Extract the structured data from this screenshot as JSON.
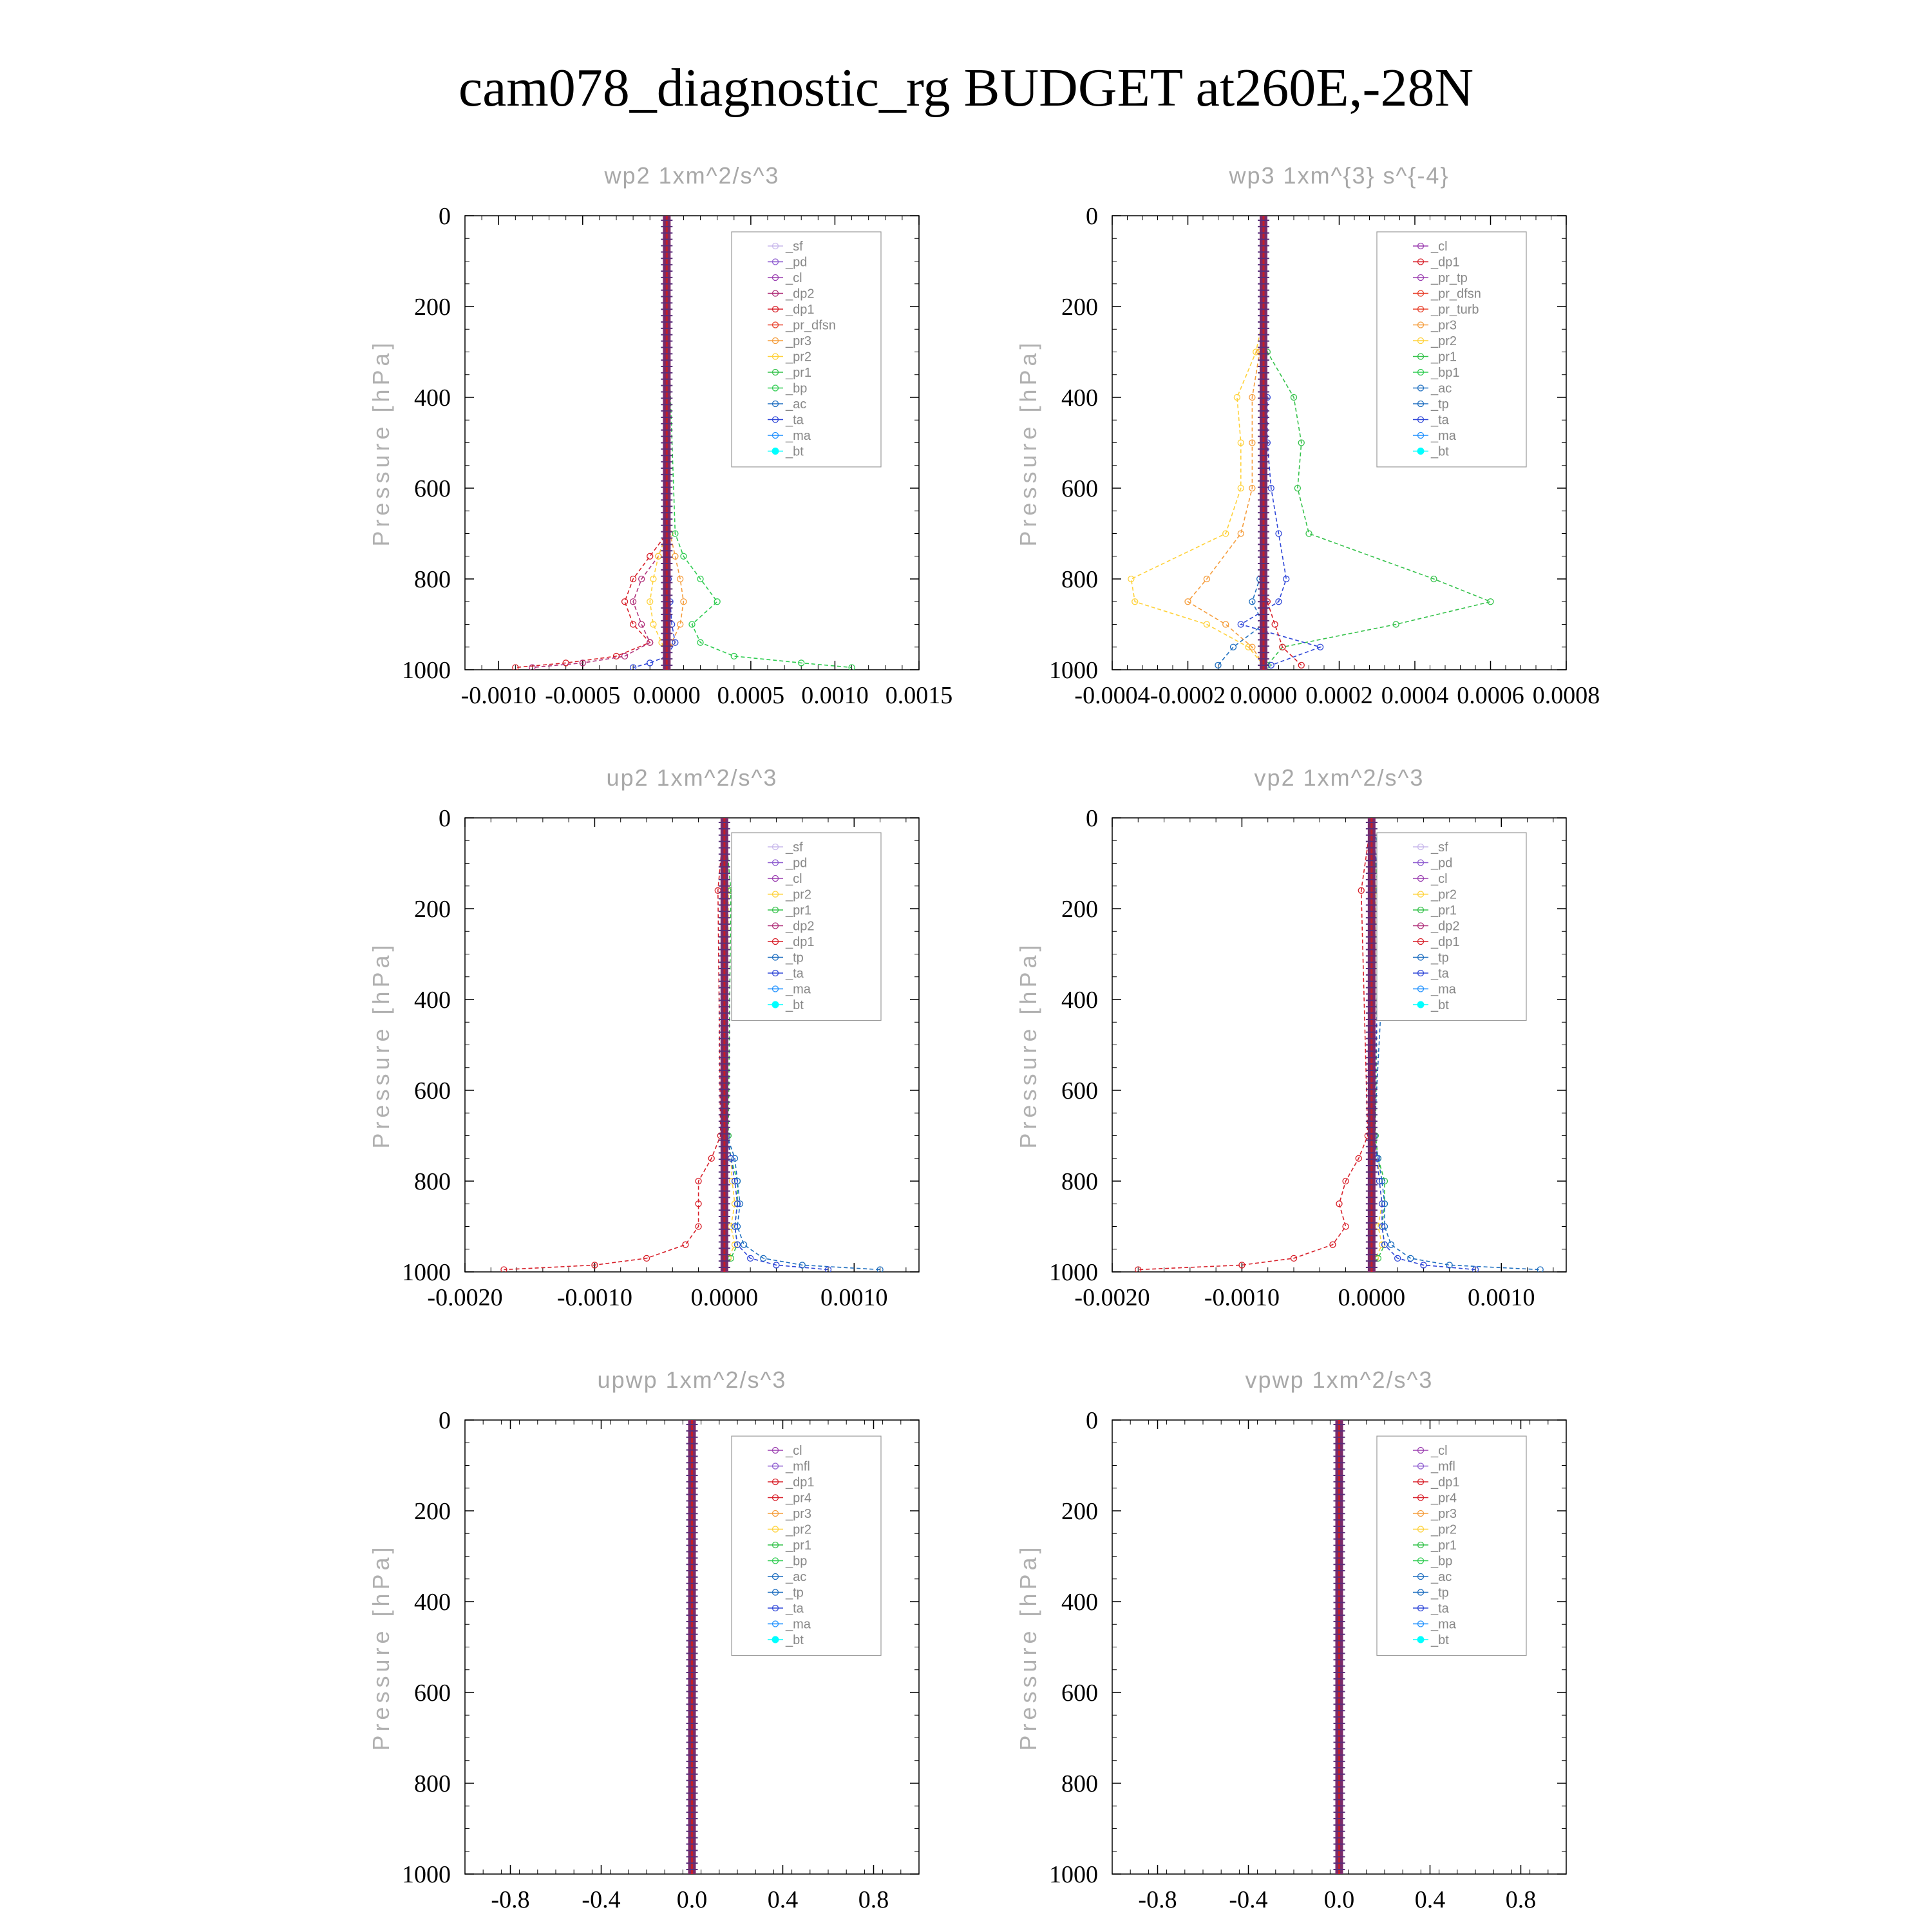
{
  "page_title": "cam078_diagnostic_rg  BUDGET at260E,-28N",
  "colors": {
    "sf": "#c9b8ec",
    "pd": "#8e5cd0",
    "cl": "#9b3fb0",
    "dp2": "#b0307a",
    "dp1": "#d8202a",
    "pr_dfsn": "#e8402a",
    "pr3": "#f59d3c",
    "pr2": "#ffd23a",
    "pr1": "#34c24a",
    "bp": "#2ecc50",
    "ac": "#1f6fc0",
    "ta": "#3048d8",
    "ma": "#1e90ff",
    "bt": "#00ffff"
  },
  "chart_data": [
    {
      "type": "line",
      "title": "wp2   1xm^2/s^3",
      "ylabel": "Pressure [hPa]",
      "ylim": [
        1000,
        0
      ],
      "yticks": [
        "0",
        "200",
        "400",
        "600",
        "800",
        "1000"
      ],
      "xlim": [
        -0.0012,
        0.0015
      ],
      "xticks": [
        -0.001,
        -0.0005,
        0.0,
        0.0005,
        0.001,
        0.0015
      ],
      "xtick_labels": [
        "-0.0010",
        "-0.0005",
        "0.0000",
        "0.0005",
        "0.0010",
        "0.0015"
      ],
      "legend": [
        "_sf",
        "_pd",
        "_cl",
        "_dp2",
        "_dp1",
        "_pr_dfsn",
        "_pr3",
        "_pr2",
        "_pr1",
        "_bp",
        "_ac",
        "_ta",
        "_ma",
        "_bt"
      ],
      "legend_position": "top-right",
      "y": [
        160,
        700,
        750,
        800,
        850,
        900,
        940,
        970,
        985,
        995
      ],
      "series": [
        {
          "name": "_dp1",
          "values": [
            0,
            0,
            -0.0001,
            -0.0002,
            -0.00025,
            -0.0002,
            -0.0001,
            -0.0003,
            -0.0006,
            -0.0009
          ]
        },
        {
          "name": "_dp2",
          "values": [
            0,
            0,
            -5e-05,
            -0.00015,
            -0.0002,
            -0.00015,
            -0.0001,
            -0.00025,
            -0.0005,
            -0.0008
          ]
        },
        {
          "name": "_pr2",
          "values": [
            0,
            0,
            -5e-05,
            -8e-05,
            -0.0001,
            -8e-05,
            -3e-05,
            0.0,
            0.0,
            0.0
          ]
        },
        {
          "name": "_pr3",
          "values": [
            0,
            2e-05,
            5e-05,
            8e-05,
            0.0001,
            8e-05,
            3e-05,
            0.0,
            0.0,
            0.0
          ]
        },
        {
          "name": "_bp",
          "values": [
            0,
            5e-05,
            0.0001,
            0.0002,
            0.0003,
            0.00015,
            0.0002,
            0.0004,
            0.0008,
            0.0011
          ]
        },
        {
          "name": "_ta",
          "values": [
            0,
            0,
            0,
            1e-05,
            2e-05,
            3e-05,
            5e-05,
            0.0,
            -0.0001,
            -0.0002
          ]
        }
      ]
    },
    {
      "type": "line",
      "title": "wp3   1xm^{3} s^{-4}",
      "ylabel": "Pressure [hPa]",
      "ylim": [
        1000,
        0
      ],
      "yticks": [
        "0",
        "200",
        "400",
        "600",
        "800",
        "1000"
      ],
      "xlim": [
        -0.0004,
        0.0008
      ],
      "xticks": [
        -0.0004,
        -0.0002,
        0.0,
        0.0002,
        0.0004,
        0.0006,
        0.0008
      ],
      "xtick_labels": [
        "-0.0004",
        "-0.0002",
        "0.0000",
        "0.0002",
        "0.0004",
        "0.0006",
        "0.0008"
      ],
      "legend": [
        "_cl",
        "_dp1",
        "_pr_tp",
        "_pr_dfsn",
        "_pr_turb",
        "_pr3",
        "_pr2",
        "_pr1",
        "_bp1",
        "_ac",
        "_tp",
        "_ta",
        "_ma",
        "_bt"
      ],
      "legend_position": "top-right",
      "y": [
        220,
        300,
        400,
        500,
        600,
        700,
        800,
        850,
        900,
        950,
        990
      ],
      "series": [
        {
          "name": "_pr1",
          "values": [
            0,
            1e-05,
            8e-05,
            0.0001,
            9e-05,
            0.00012,
            0.00045,
            0.0006,
            0.00035,
            5e-05,
            1e-05
          ]
        },
        {
          "name": "_pr2",
          "values": [
            0,
            -2e-05,
            -7e-05,
            -6e-05,
            -6e-05,
            -0.0001,
            -0.00035,
            -0.00034,
            -0.00015,
            -4e-05,
            0.0
          ]
        },
        {
          "name": "_pr3",
          "values": [
            0,
            -1e-05,
            -3e-05,
            -3e-05,
            -3e-05,
            -6e-05,
            -0.00015,
            -0.0002,
            -0.0001,
            -3e-05,
            0.0
          ]
        },
        {
          "name": "_ta",
          "values": [
            0,
            0,
            1e-05,
            1e-05,
            2e-05,
            4e-05,
            6e-05,
            4e-05,
            -6e-05,
            0.00015,
            2e-05
          ]
        },
        {
          "name": "_ac",
          "values": [
            0,
            0,
            0,
            0,
            0,
            0,
            -1e-05,
            -3e-05,
            0.0,
            -8e-05,
            -0.00012
          ]
        },
        {
          "name": "_dp1",
          "values": [
            0,
            0,
            0,
            0,
            0,
            0,
            0,
            1e-05,
            3e-05,
            5e-05,
            0.0001
          ]
        }
      ]
    },
    {
      "type": "line",
      "title": "up2   1xm^2/s^3",
      "ylabel": "Pressure [hPa]",
      "ylim": [
        1000,
        0
      ],
      "yticks": [
        "0",
        "200",
        "400",
        "600",
        "800",
        "1000"
      ],
      "xlim": [
        -0.002,
        0.0015
      ],
      "xticks": [
        -0.002,
        -0.001,
        0.0,
        0.001
      ],
      "xtick_labels": [
        "-0.0020",
        "-0.0010",
        "0.0000",
        "0.0010"
      ],
      "legend": [
        "_sf",
        "_pd",
        "_cl",
        "_pr2",
        "_pr1",
        "_dp2",
        "_dp1",
        "_tp",
        "_ta",
        "_ma",
        "_bt"
      ],
      "legend_position": "top-right",
      "y": [
        160,
        700,
        750,
        800,
        850,
        900,
        940,
        970,
        985,
        995
      ],
      "series": [
        {
          "name": "_dp1",
          "values": [
            -5e-05,
            -3e-05,
            -0.0001,
            -0.0002,
            -0.0002,
            -0.0002,
            -0.0003,
            -0.0006,
            -0.001,
            -0.0017
          ]
        },
        {
          "name": "_pr2",
          "values": [
            3e-05,
            2e-05,
            5e-05,
            6e-05,
            8e-05,
            5e-05,
            8e-05,
            3e-05,
            0.0,
            0.0
          ]
        },
        {
          "name": "_pr1",
          "values": [
            5e-05,
            3e-05,
            5e-05,
            0.0001,
            0.0001,
            8e-05,
            0.0001,
            5e-05,
            0.0,
            0.0
          ]
        },
        {
          "name": "_tp",
          "values": [
            0,
            2e-05,
            8e-05,
            0.0001,
            0.00012,
            0.0001,
            0.00015,
            0.0003,
            0.0006,
            0.0012
          ]
        },
        {
          "name": "_ta",
          "values": [
            0,
            2e-05,
            5e-05,
            8e-05,
            0.0001,
            8e-05,
            0.0001,
            0.0002,
            0.0004,
            0.0008
          ]
        }
      ]
    },
    {
      "type": "line",
      "title": "vp2   1xm^2/s^3",
      "ylabel": "Pressure [hPa]",
      "ylim": [
        1000,
        0
      ],
      "yticks": [
        "0",
        "200",
        "400",
        "600",
        "800",
        "1000"
      ],
      "xlim": [
        -0.002,
        0.0015
      ],
      "xticks": [
        -0.002,
        -0.001,
        0.0,
        0.001
      ],
      "xtick_labels": [
        "-0.0020",
        "-0.0010",
        "0.0000",
        "0.0010"
      ],
      "legend": [
        "_sf",
        "_pd",
        "_cl",
        "_pr2",
        "_pr1",
        "_dp2",
        "_dp1",
        "_tp",
        "_ta",
        "_ma",
        "_bt"
      ],
      "legend_position": "top-right",
      "y": [
        160,
        700,
        750,
        800,
        850,
        900,
        940,
        970,
        985,
        995
      ],
      "series": [
        {
          "name": "_dp1",
          "values": [
            -8e-05,
            -3e-05,
            -0.0001,
            -0.0002,
            -0.00025,
            -0.0002,
            -0.0003,
            -0.0006,
            -0.001,
            -0.0018
          ]
        },
        {
          "name": "_pr2",
          "values": [
            3e-05,
            2e-05,
            5e-05,
            6e-05,
            8e-05,
            5e-05,
            8e-05,
            3e-05,
            0.0,
            0.0
          ]
        },
        {
          "name": "_pr1",
          "values": [
            5e-05,
            3e-05,
            5e-05,
            0.0001,
            0.0001,
            8e-05,
            0.0001,
            5e-05,
            0.0,
            0.0
          ]
        },
        {
          "name": "_tp",
          "values": [
            0.00012,
            2e-05,
            5e-05,
            8e-05,
            0.0001,
            0.0001,
            0.00015,
            0.0003,
            0.0006,
            0.0013
          ]
        },
        {
          "name": "_ta",
          "values": [
            6e-05,
            2e-05,
            4e-05,
            6e-05,
            8e-05,
            8e-05,
            0.0001,
            0.0002,
            0.0004,
            0.0008
          ]
        }
      ]
    },
    {
      "type": "line",
      "title": "upwp   1xm^2/s^3",
      "ylabel": "Pressure [hPa]",
      "ylim": [
        1000,
        0
      ],
      "yticks": [
        "0",
        "200",
        "400",
        "600",
        "800",
        "1000"
      ],
      "xlim": [
        -1.0,
        1.0
      ],
      "xticks": [
        -0.8,
        -0.4,
        0.0,
        0.4,
        0.8
      ],
      "xtick_labels": [
        "-0.8",
        "-0.4",
        "0.0",
        "0.4",
        "0.8"
      ],
      "legend": [
        "_cl",
        "_mfl",
        "_dp1",
        "_pr4",
        "_pr3",
        "_pr2",
        "_pr1",
        "_bp",
        "_ac",
        "_tp",
        "_ta",
        "_ma",
        "_bt"
      ],
      "legend_position": "top-right",
      "y": [
        0,
        1000
      ],
      "series": []
    },
    {
      "type": "line",
      "title": "vpwp   1xm^2/s^3",
      "ylabel": "Pressure [hPa]",
      "ylim": [
        1000,
        0
      ],
      "yticks": [
        "0",
        "200",
        "400",
        "600",
        "800",
        "1000"
      ],
      "xlim": [
        -1.0,
        1.0
      ],
      "xticks": [
        -0.8,
        -0.4,
        0.0,
        0.4,
        0.8
      ],
      "xtick_labels": [
        "-0.8",
        "-0.4",
        "0.0",
        "0.4",
        "0.8"
      ],
      "legend": [
        "_cl",
        "_mfl",
        "_dp1",
        "_pr4",
        "_pr3",
        "_pr2",
        "_pr1",
        "_bp",
        "_ac",
        "_tp",
        "_ta",
        "_ma",
        "_bt"
      ],
      "legend_position": "top-right",
      "y": [
        0,
        1000
      ],
      "series": []
    }
  ]
}
